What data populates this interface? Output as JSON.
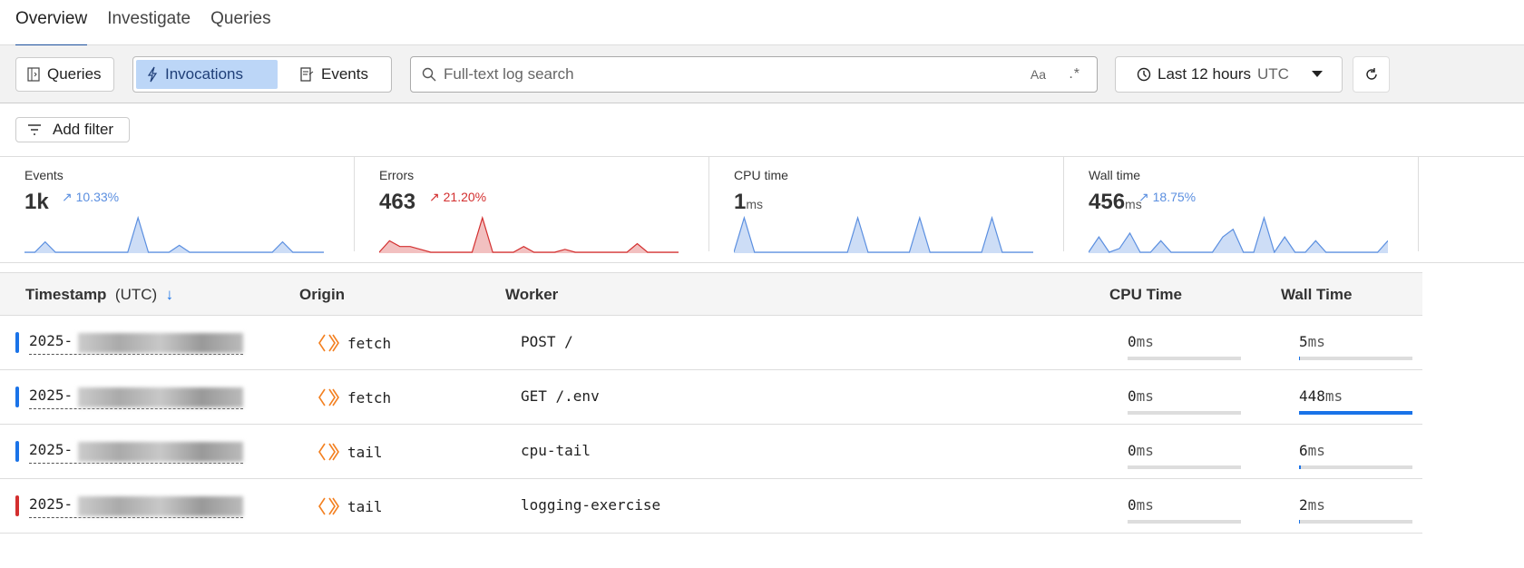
{
  "tabs": [
    {
      "label": "Overview",
      "active": true
    },
    {
      "label": "Investigate"
    },
    {
      "label": "Queries"
    }
  ],
  "toolbar": {
    "queries_label": "Queries",
    "mode_options": [
      "Invocations",
      "Events"
    ],
    "selected_mode": "Invocations",
    "search_placeholder": "Full-text log search",
    "search_value": "",
    "case_toggle": "Aa",
    "regex_toggle": ".*",
    "time_range": "Last 12 hours",
    "timezone": "UTC"
  },
  "filters": {
    "add_filter_label": "Add filter"
  },
  "accent": "#1a73e8",
  "error_color": "#d32f2f",
  "stats": [
    {
      "label": "Events",
      "value": "1k",
      "unit": "",
      "change": "10.33%",
      "trend": "up",
      "color": "#5b8fe0",
      "spark": [
        0,
        0,
        3,
        0,
        0,
        0,
        0,
        0,
        0,
        0,
        0,
        10,
        0,
        0,
        0,
        2,
        0,
        0,
        0,
        0,
        0,
        0,
        0,
        0,
        0,
        3,
        0,
        0,
        0,
        0
      ]
    },
    {
      "label": "Errors",
      "value": "463",
      "unit": "",
      "change": "21.20%",
      "trend": "up",
      "color": "#d32f2f",
      "spark": [
        0,
        4,
        2,
        2,
        1,
        0,
        0,
        0,
        0,
        0,
        12,
        0,
        0,
        0,
        2,
        0,
        0,
        0,
        1,
        0,
        0,
        0,
        0,
        0,
        0,
        3,
        0,
        0,
        0,
        0
      ]
    },
    {
      "label": "CPU time",
      "value": "1",
      "unit": "ms",
      "change": "",
      "trend": "",
      "color": "#5b8fe0",
      "spark": [
        0,
        10,
        0,
        0,
        0,
        0,
        0,
        0,
        0,
        0,
        0,
        0,
        10,
        0,
        0,
        0,
        0,
        0,
        10,
        0,
        0,
        0,
        0,
        0,
        0,
        10,
        0,
        0,
        0,
        0
      ]
    },
    {
      "label": "Wall time",
      "value": "456",
      "unit": "ms",
      "change": "18.75%",
      "trend": "up",
      "color": "#5b8fe0",
      "spark": [
        0,
        4,
        0,
        1,
        5,
        0,
        0,
        3,
        0,
        0,
        0,
        0,
        0,
        4,
        6,
        0,
        0,
        9,
        0,
        4,
        0,
        0,
        3,
        0,
        0,
        0,
        0,
        0,
        0,
        3
      ]
    }
  ],
  "table": {
    "columns": {
      "timestamp": "Timestamp",
      "timestamp_tz": "(UTC)",
      "origin": "Origin",
      "worker": "Worker",
      "cpu": "CPU Time",
      "wall": "Wall Time"
    },
    "rows": [
      {
        "timestamp": "2025-",
        "status_color": "#1a73e8",
        "origin": "fetch",
        "worker": "POST /",
        "cpu": "0",
        "cpu_unit": "ms",
        "wall": "5",
        "wall_unit": "ms",
        "wall_fraction": 0.011
      },
      {
        "timestamp": "2025-",
        "status_color": "#1a73e8",
        "origin": "fetch",
        "worker": "GET /.env",
        "cpu": "0",
        "cpu_unit": "ms",
        "wall": "448",
        "wall_unit": "ms",
        "wall_fraction": 1.0
      },
      {
        "timestamp": "2025-",
        "status_color": "#1a73e8",
        "origin": "tail",
        "worker": "cpu-tail",
        "cpu": "0",
        "cpu_unit": "ms",
        "wall": "6",
        "wall_unit": "ms",
        "wall_fraction": 0.013
      },
      {
        "timestamp": "2025-",
        "status_color": "#d32f2f",
        "origin": "tail",
        "worker": "logging-exercise",
        "cpu": "0",
        "cpu_unit": "ms",
        "wall": "2",
        "wall_unit": "ms",
        "wall_fraction": 0.005
      }
    ]
  }
}
